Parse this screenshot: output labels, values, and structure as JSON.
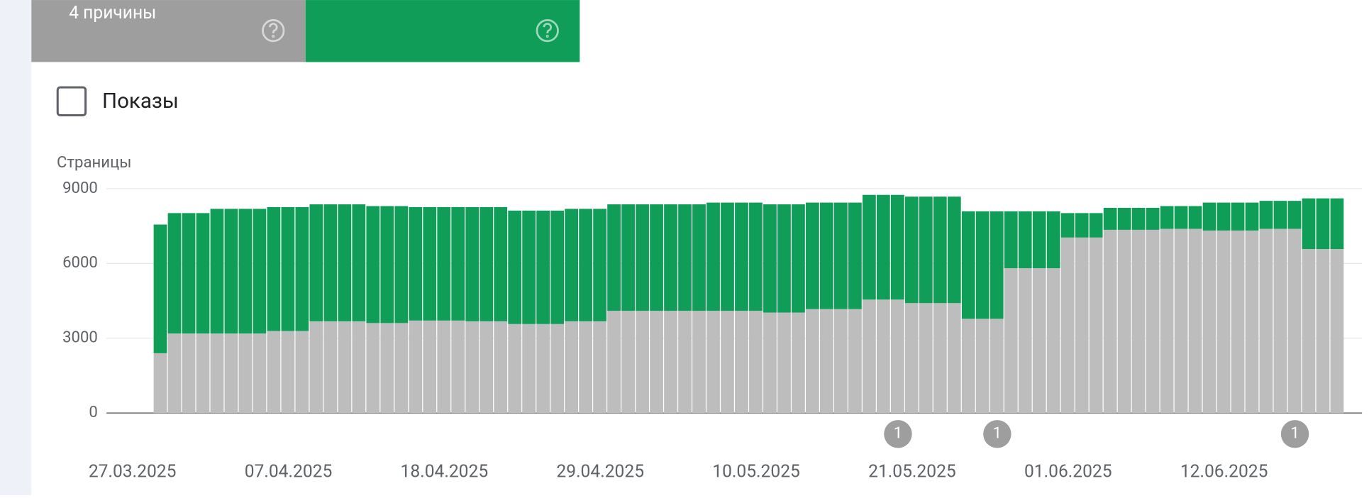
{
  "cards": [
    {
      "label": "4 причины"
    }
  ],
  "checkbox_label": "Показы",
  "chart_data": {
    "type": "stacked-bar",
    "y_label": "Страницы",
    "categories": [
      "27.03.2025",
      null,
      null,
      null,
      null,
      null,
      null,
      null,
      null,
      null,
      null,
      "07.04.2025",
      null,
      null,
      null,
      null,
      null,
      null,
      null,
      null,
      null,
      null,
      "18.04.2025",
      null,
      null,
      null,
      null,
      null,
      null,
      null,
      null,
      null,
      null,
      "29.04.2025",
      null,
      null,
      null,
      null,
      null,
      null,
      null,
      null,
      null,
      null,
      "10.05.2025",
      null,
      null,
      null,
      null,
      null,
      null,
      null,
      null,
      null,
      null,
      "21.05.2025",
      null,
      null,
      null,
      null,
      null,
      null,
      null,
      null,
      null,
      null,
      "01.06.2025",
      null,
      null,
      null,
      null,
      null,
      null,
      null,
      null,
      null,
      null,
      "12.06.2025",
      null,
      null,
      null,
      null,
      null,
      null,
      null,
      null
    ],
    "series": [
      {
        "color": "#bdbdbd",
        "values": [
          null,
          null,
          2400,
          3190,
          3190,
          3190,
          3190,
          3190,
          3190,
          3190,
          3290,
          3290,
          3290,
          3680,
          3680,
          3680,
          3680,
          3610,
          3610,
          3610,
          3710,
          3710,
          3710,
          3710,
          3680,
          3680,
          3680,
          3570,
          3570,
          3570,
          3570,
          3680,
          3680,
          3680,
          4100,
          4100,
          4100,
          4100,
          4100,
          4100,
          4100,
          4100,
          4100,
          4100,
          4100,
          4030,
          4030,
          4030,
          4170,
          4170,
          4170,
          4170,
          4550,
          4550,
          4550,
          4410,
          4410,
          4410,
          4410,
          3780,
          3780,
          3780,
          5810,
          5810,
          5810,
          5810,
          7040,
          7040,
          7040,
          7350,
          7350,
          7350,
          7350,
          7390,
          7390,
          7390,
          7320,
          7320,
          7320,
          7320,
          7390,
          7390,
          7390,
          6580,
          6580,
          6580
        ]
      },
      {
        "color": "#0f9d58",
        "values": [
          null,
          null,
          5160,
          4830,
          4830,
          4830,
          5000,
          5000,
          5000,
          5000,
          4970,
          4970,
          4970,
          4690,
          4690,
          4690,
          4690,
          4690,
          4690,
          4690,
          4550,
          4550,
          4550,
          4550,
          4580,
          4580,
          4580,
          4550,
          4550,
          4550,
          4550,
          4510,
          4510,
          4510,
          4270,
          4270,
          4270,
          4270,
          4270,
          4270,
          4270,
          4340,
          4340,
          4340,
          4340,
          4340,
          4340,
          4340,
          4270,
          4270,
          4270,
          4270,
          4200,
          4200,
          4200,
          4270,
          4270,
          4270,
          4270,
          4310,
          4310,
          4310,
          2280,
          2280,
          2280,
          2280,
          980,
          980,
          980,
          880,
          880,
          880,
          880,
          910,
          910,
          910,
          1120,
          1120,
          1120,
          1120,
          1120,
          1120,
          1120,
          2030,
          2030,
          2030
        ]
      }
    ],
    "annotations": [
      null,
      null,
      null,
      null,
      null,
      null,
      null,
      null,
      null,
      null,
      null,
      null,
      null,
      null,
      null,
      null,
      null,
      null,
      null,
      null,
      null,
      null,
      null,
      null,
      null,
      null,
      null,
      null,
      null,
      null,
      null,
      null,
      null,
      null,
      null,
      null,
      null,
      null,
      null,
      null,
      null,
      null,
      null,
      null,
      null,
      null,
      null,
      null,
      null,
      null,
      null,
      null,
      null,
      null,
      "1",
      null,
      null,
      null,
      null,
      null,
      null,
      "1",
      null,
      null,
      null,
      null,
      null,
      null,
      null,
      null,
      null,
      null,
      null,
      null,
      null,
      null,
      null,
      null,
      null,
      null,
      null,
      null,
      "1",
      null,
      null,
      null
    ],
    "ylim": [
      0,
      9000
    ],
    "yticks": [
      0,
      3000,
      6000,
      9000
    ],
    "grid": true
  }
}
